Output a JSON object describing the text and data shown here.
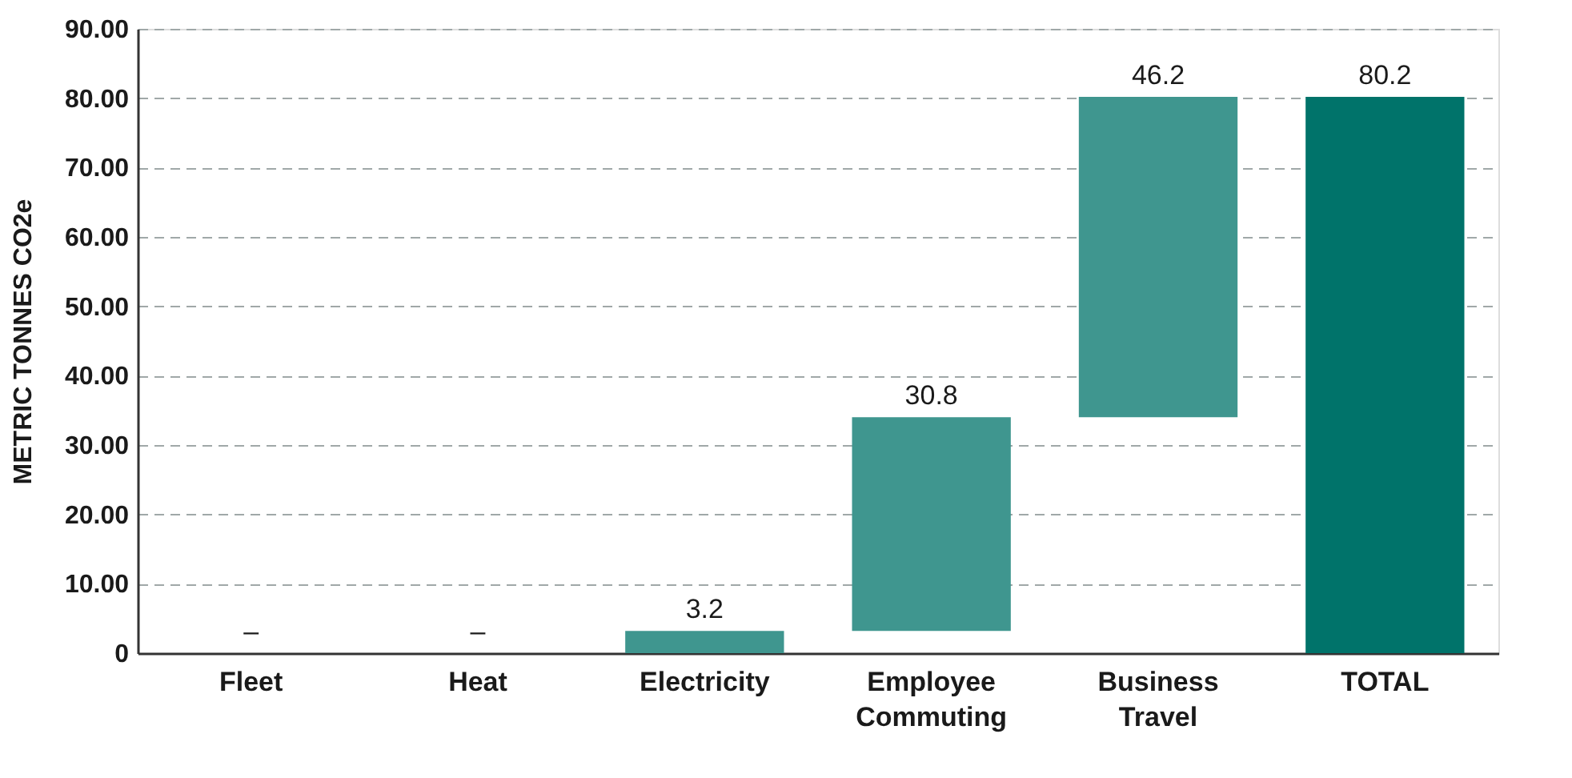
{
  "chart_data": {
    "type": "bar",
    "ylabel": "METRIC TONNES CO2e",
    "categories": [
      "Fleet",
      "Heat",
      "Electricity",
      "Employee Commuting",
      "Business Travel",
      "TOTAL"
    ],
    "values": [
      0,
      0,
      3.2,
      30.8,
      46.2,
      80.2
    ],
    "base": [
      null,
      null,
      null,
      3.2,
      34.0,
      null
    ],
    "colors": [
      "#3f968f",
      "#3f968f",
      "#3f968f",
      "#3f968f",
      "#3f968f",
      "#00736a"
    ],
    "value_labels": [
      "–",
      "–",
      "3.2",
      "30.8",
      "46.2",
      "80.2"
    ],
    "ylim": [
      0,
      90
    ],
    "yticks": [
      0,
      {
        "value": 10,
        "label": "10.00"
      },
      {
        "value": 20,
        "label": "20.00"
      },
      {
        "value": 30,
        "label": "30.00"
      },
      {
        "value": 40,
        "label": "40.00"
      },
      {
        "value": 50,
        "label": "50.00"
      },
      {
        "value": 60,
        "label": "60.00"
      },
      {
        "value": 70,
        "label": "70.00"
      },
      {
        "value": 80,
        "label": "80.00"
      },
      {
        "value": 90,
        "label": "90.00"
      }
    ],
    "grid": "y"
  }
}
